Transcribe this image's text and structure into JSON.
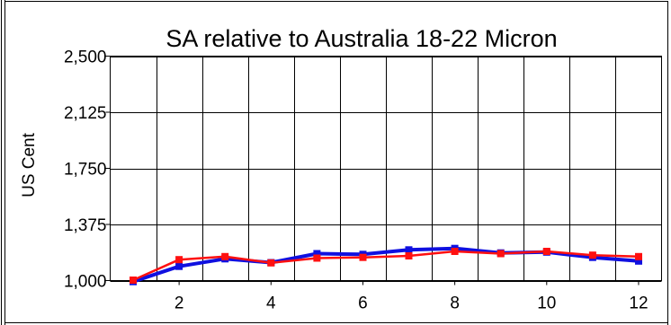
{
  "chart_data": {
    "type": "line",
    "title": "SA relative to Australia 18-22 Micron",
    "xlabel": "",
    "ylabel": "US Cent",
    "xlim": [
      0.5,
      12.5
    ],
    "ylim": [
      1000,
      2500
    ],
    "xticks": [
      2,
      4,
      6,
      8,
      10,
      12
    ],
    "xtick_labels": [
      "2",
      "4",
      "6",
      "8",
      "10",
      "12"
    ],
    "yticks": [
      1000,
      1375,
      1750,
      2125,
      2500
    ],
    "ytick_labels": [
      "1,000",
      "1,375",
      "1,750",
      "2,125",
      "2,500"
    ],
    "grid": true,
    "legend": "none",
    "x": [
      1,
      2,
      3,
      4,
      5,
      6,
      7,
      8,
      9,
      10,
      11,
      12
    ],
    "series": [
      {
        "color": "#1010e0",
        "values": [
          993,
          1095,
          1145,
          1120,
          1180,
          1175,
          1205,
          1215,
          1185,
          1190,
          1155,
          1130
        ]
      },
      {
        "color": "#ff1010",
        "values": [
          1003,
          1140,
          1160,
          1118,
          1150,
          1155,
          1165,
          1195,
          1180,
          1195,
          1170,
          1160
        ]
      }
    ]
  }
}
